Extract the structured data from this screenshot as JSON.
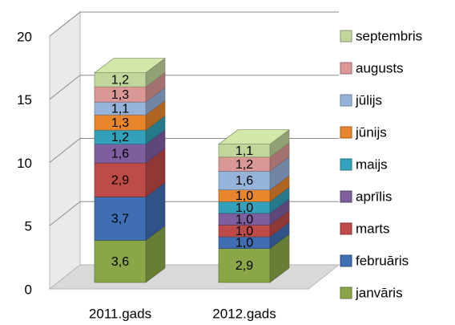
{
  "chart_data": {
    "type": "bar3d_stacked",
    "categories": [
      "2011.gads",
      "2012.gads"
    ],
    "ylim": [
      0,
      20
    ],
    "yticks": [
      0,
      5,
      10,
      15,
      20
    ],
    "grid": true,
    "legend": "right",
    "series": [
      {
        "name": "janvāris",
        "color": "#8aa648",
        "values": [
          3.6,
          2.9
        ],
        "value_labels": [
          "3,6",
          "2,9"
        ]
      },
      {
        "name": "februāris",
        "color": "#3f6fb2",
        "values": [
          3.7,
          1.0
        ],
        "value_labels": [
          "3,7",
          "1,0"
        ]
      },
      {
        "name": "marts",
        "color": "#be4b48",
        "values": [
          2.9,
          1.0
        ],
        "value_labels": [
          "2,9",
          "1,0"
        ]
      },
      {
        "name": "aprīlis",
        "color": "#7d5fa0",
        "values": [
          1.6,
          1.0
        ],
        "value_labels": [
          "1,6",
          "1,0"
        ]
      },
      {
        "name": "maijs",
        "color": "#33a1b9",
        "values": [
          1.2,
          1.0
        ],
        "value_labels": [
          "1,2",
          "1,0"
        ]
      },
      {
        "name": "jūnijs",
        "color": "#e8862d",
        "values": [
          1.3,
          1.0
        ],
        "value_labels": [
          "1,3",
          "1,0"
        ]
      },
      {
        "name": "jūlijs",
        "color": "#96b3da",
        "values": [
          1.1,
          1.6
        ],
        "value_labels": [
          "1,1",
          "1,6"
        ]
      },
      {
        "name": "augusts",
        "color": "#d99795",
        "values": [
          1.3,
          1.2
        ],
        "value_labels": [
          "1,3",
          "1,2"
        ]
      },
      {
        "name": "septembris",
        "color": "#c2d69c",
        "values": [
          1.2,
          1.1
        ],
        "value_labels": [
          "1,2",
          "1,1"
        ]
      }
    ]
  }
}
